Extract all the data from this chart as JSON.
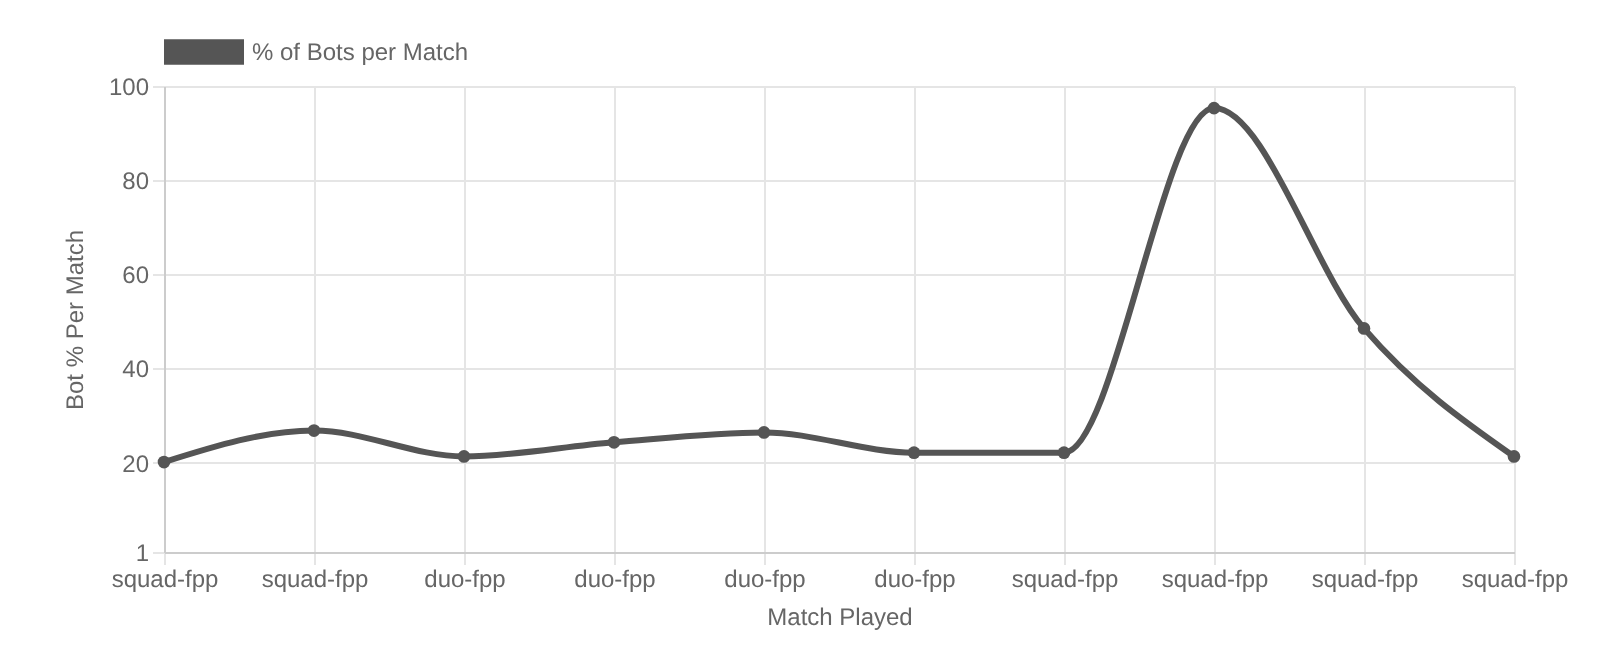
{
  "chart_data": {
    "type": "line",
    "xlabel": "Match Played",
    "ylabel": "Bot % Per Match",
    "categories": [
      "squad-fpp",
      "squad-fpp",
      "duo-fpp",
      "duo-fpp",
      "duo-fpp",
      "duo-fpp",
      "squad-fpp",
      "squad-fpp",
      "squad-fpp",
      "squad-fpp"
    ],
    "series": [
      {
        "name": "% of Bots per Match",
        "color": "#555555",
        "values": [
          20.1,
          26.8,
          21.3,
          24.3,
          26.4,
          22.1,
          22.1,
          95.3,
          48.5,
          21.3
        ]
      }
    ],
    "ylim": [
      1,
      100
    ],
    "yticks": [
      1,
      20,
      40,
      60,
      80,
      100
    ],
    "grid": true,
    "legend": "top",
    "marker": "circle",
    "line_style": "solid"
  }
}
